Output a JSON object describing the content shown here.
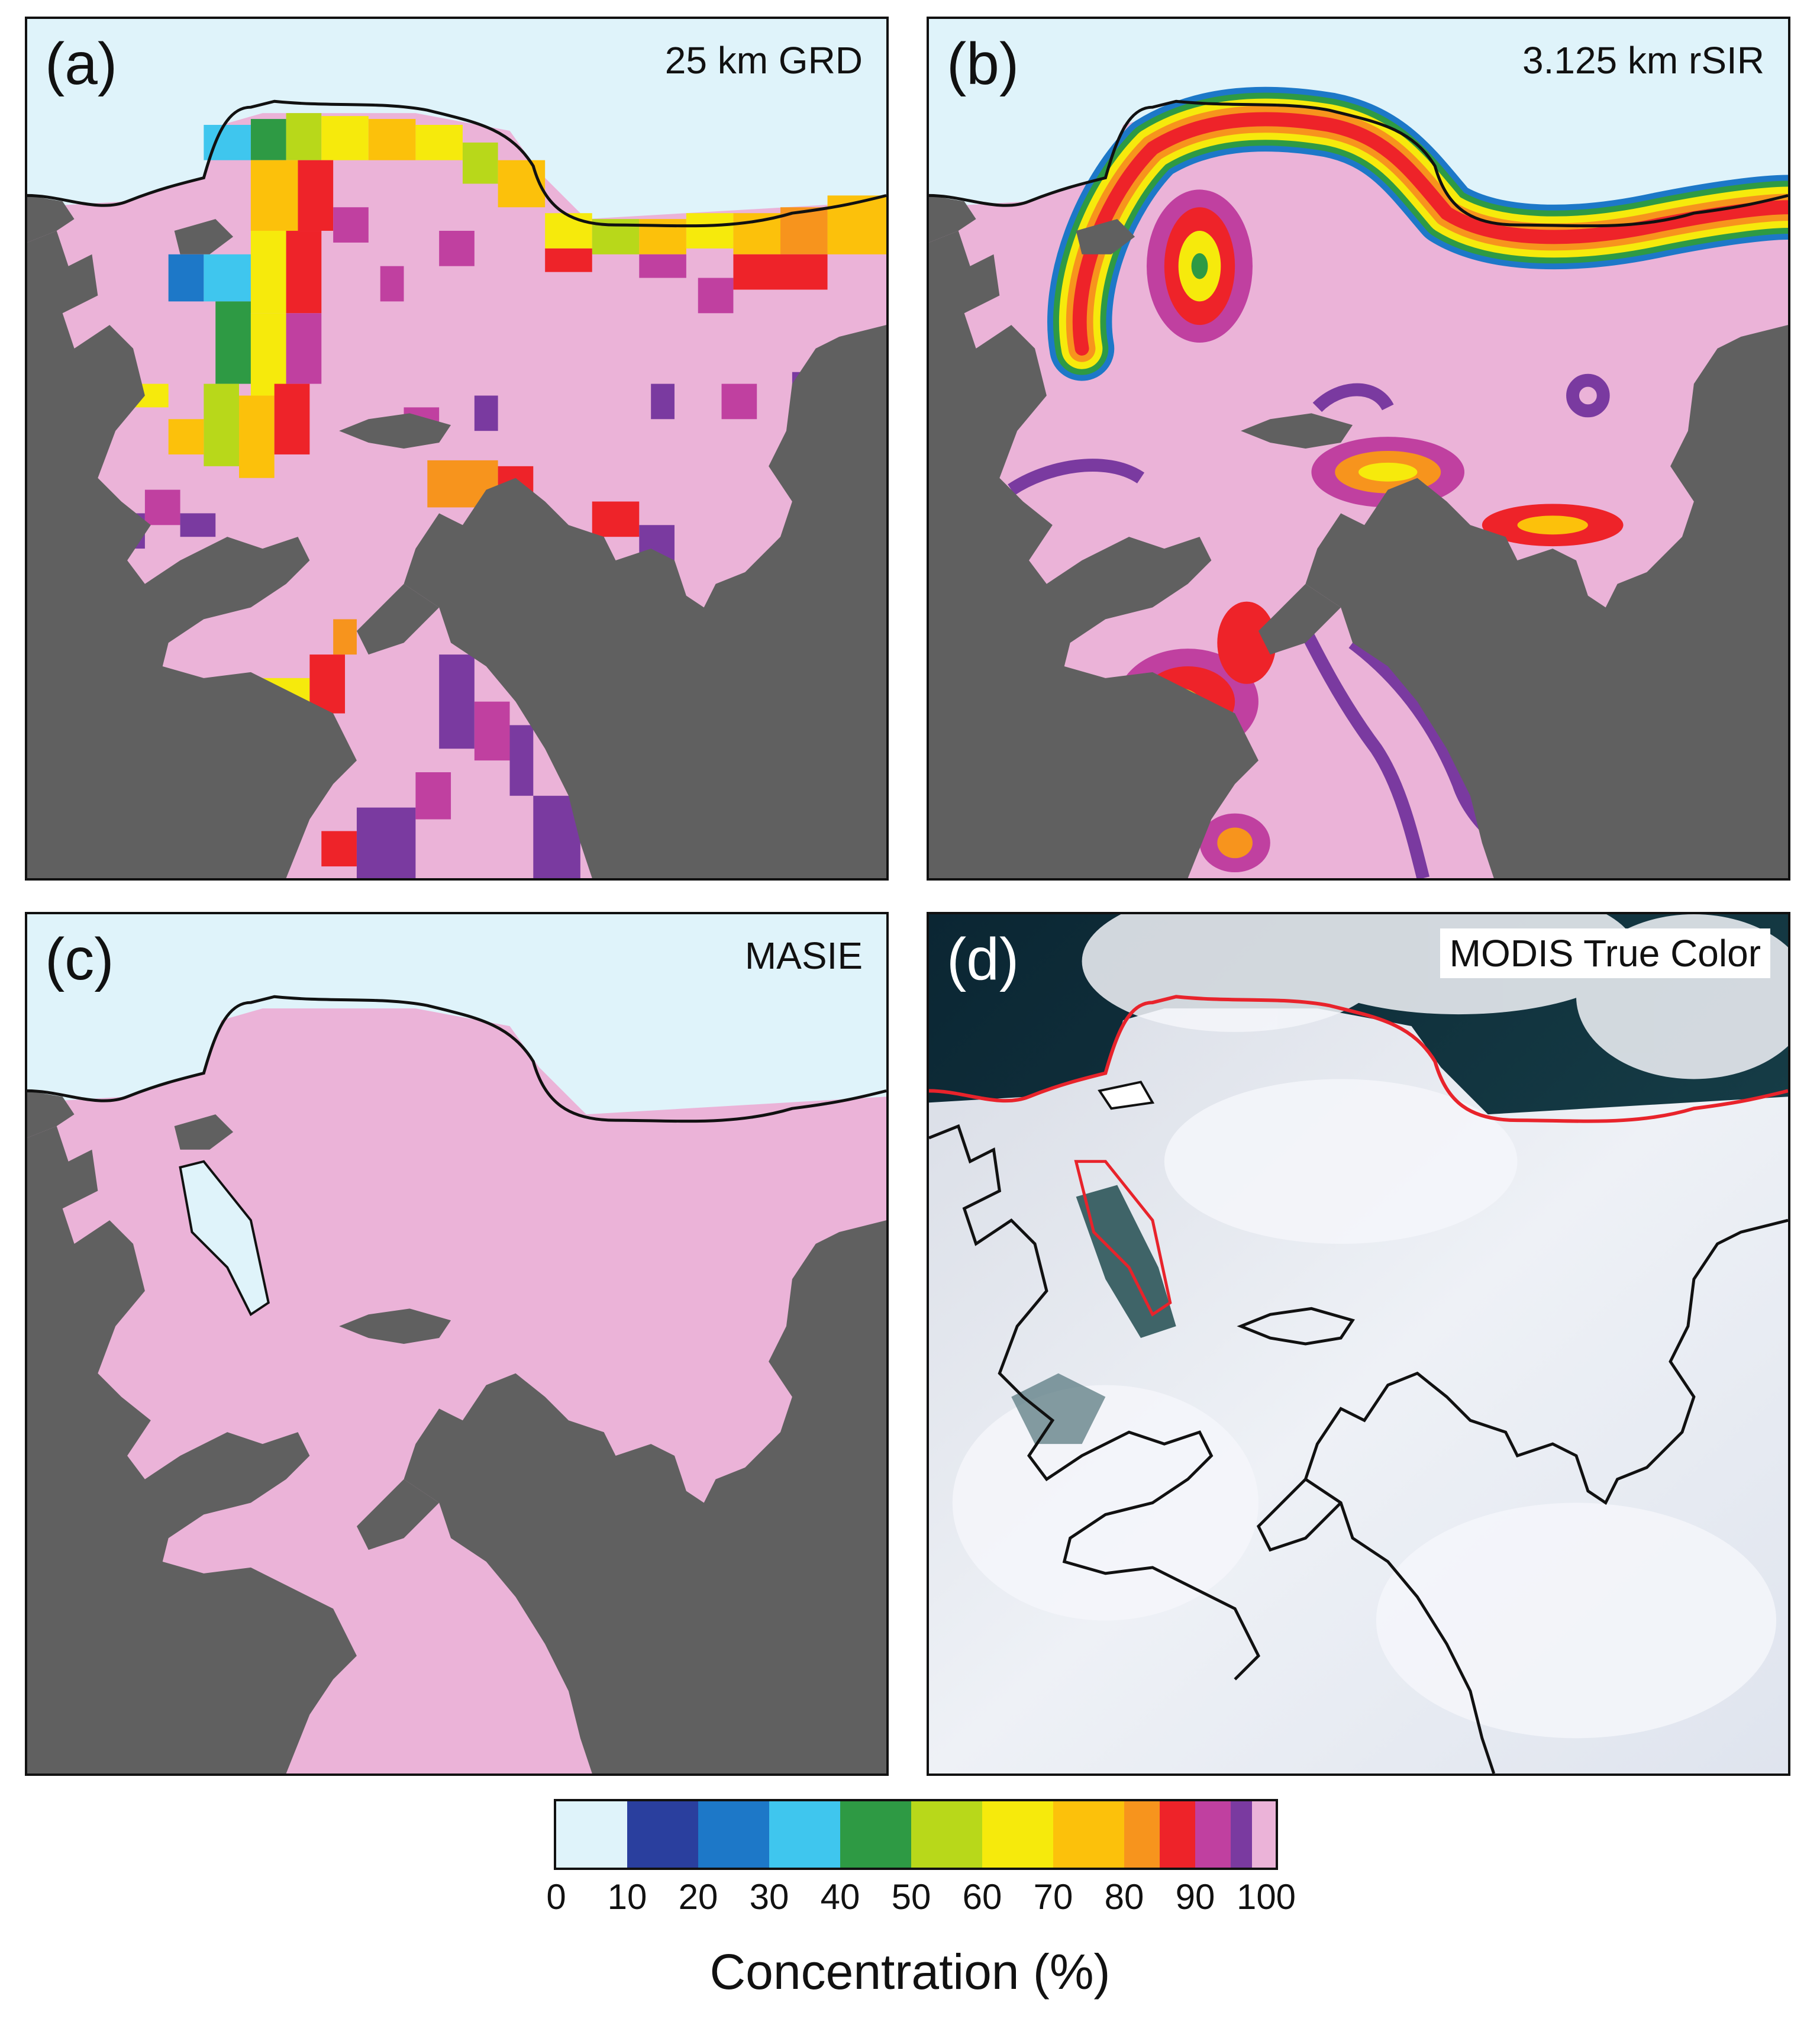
{
  "panels": {
    "a": {
      "letter": "(a)",
      "title": "25 km GRD"
    },
    "b": {
      "letter": "(b)",
      "title": "3.125 km rSIR"
    },
    "c": {
      "letter": "(c)",
      "title": "MASIE"
    },
    "d": {
      "letter": "(d)",
      "title": "MODIS True Color"
    }
  },
  "colors": {
    "open_water": "#dff3fa",
    "land": "#606060",
    "ice_full": "#ebb3d8",
    "ice_edge_line": "#111111",
    "modis_ice_edge_line": "#e8232b",
    "modis_sea": "#10303a",
    "modis_snow": "#e9ecf3"
  },
  "colorbar": {
    "label": "Concentration (%)",
    "ticks": [
      "0",
      "10",
      "20",
      "30",
      "40",
      "50",
      "60",
      "70",
      "80",
      "90",
      "100"
    ],
    "bins": [
      {
        "from": 0,
        "to": 10,
        "color": "#dff3fa"
      },
      {
        "from": 10,
        "to": 20,
        "color": "#2a3f9e"
      },
      {
        "from": 20,
        "to": 30,
        "color": "#1d78c8"
      },
      {
        "from": 30,
        "to": 40,
        "color": "#3fc6ee"
      },
      {
        "from": 40,
        "to": 50,
        "color": "#2e9a44"
      },
      {
        "from": 50,
        "to": 60,
        "color": "#b8d81a"
      },
      {
        "from": 60,
        "to": 70,
        "color": "#f6ea0c"
      },
      {
        "from": 70,
        "to": 80,
        "color": "#fcc10b"
      },
      {
        "from": 80,
        "to": 85,
        "color": "#f7941d"
      },
      {
        "from": 85,
        "to": 90,
        "color": "#ee2329"
      },
      {
        "from": 90,
        "to": 95,
        "color": "#c040a0"
      },
      {
        "from": 95,
        "to": 98,
        "color": "#7a3aa0"
      },
      {
        "from": 98,
        "to": 100,
        "color": "#ebb3d8"
      }
    ]
  }
}
